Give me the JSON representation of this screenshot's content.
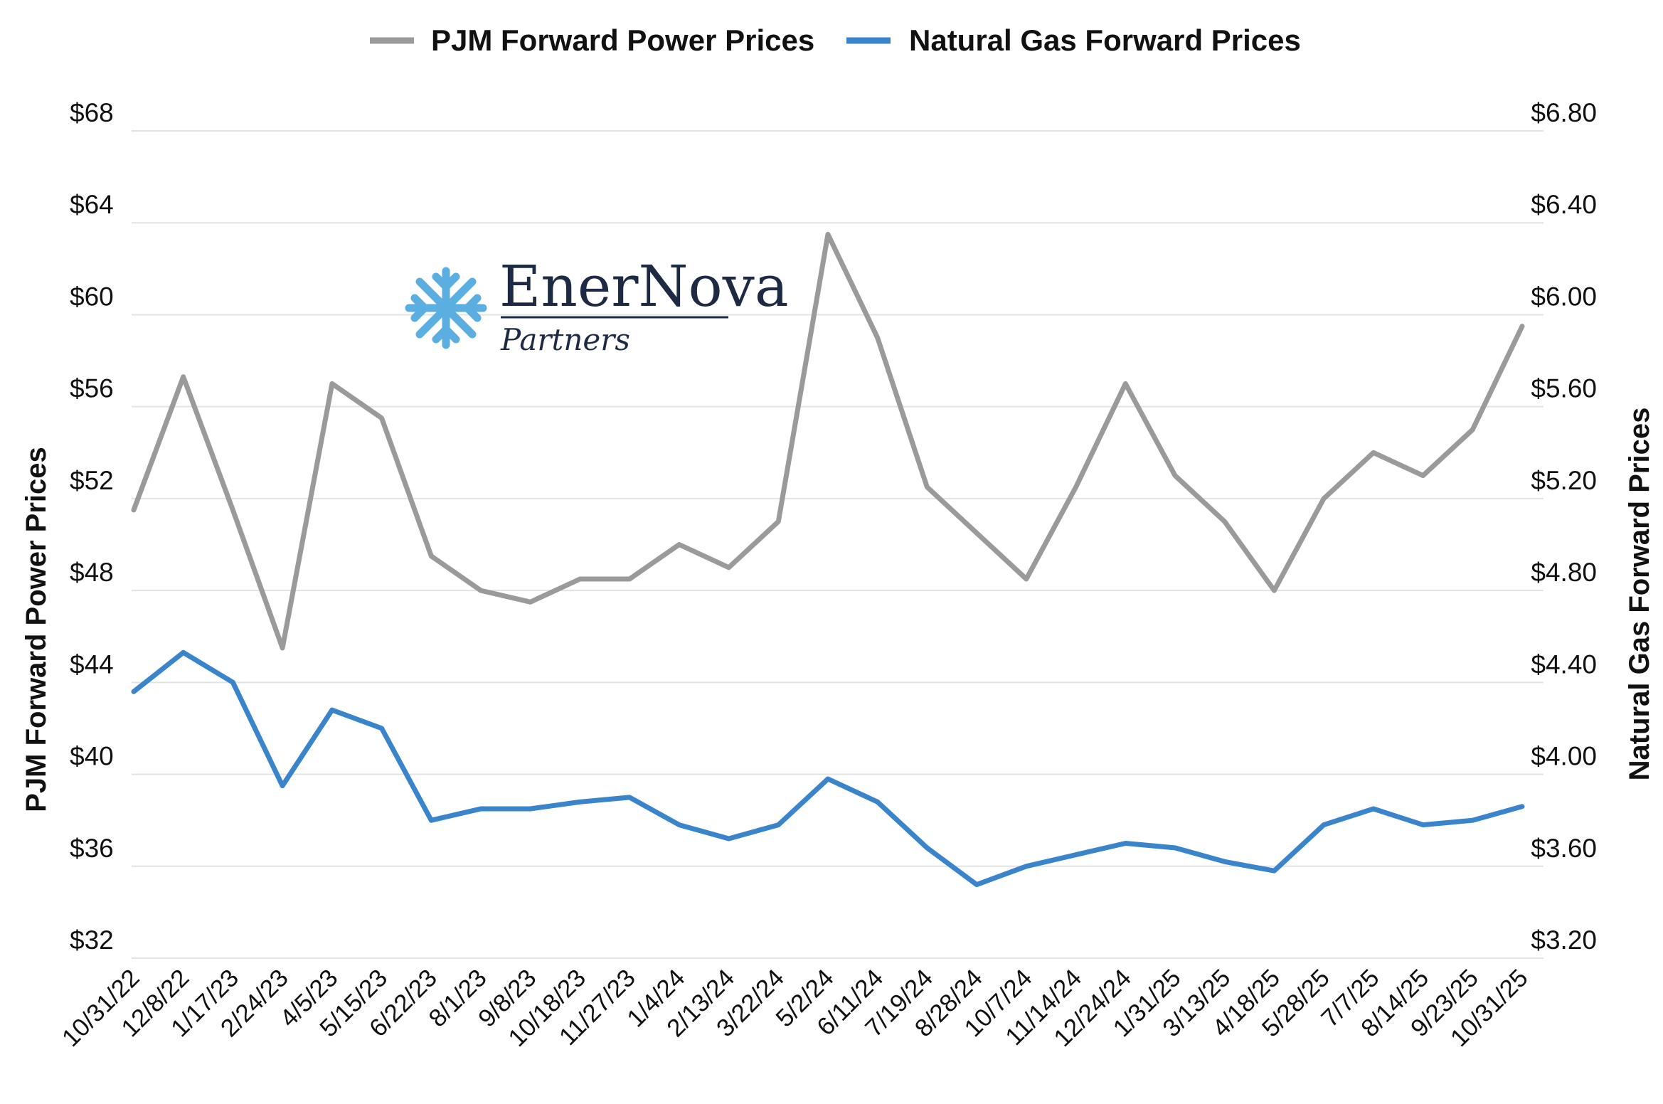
{
  "chart_data": {
    "type": "line",
    "title": "",
    "legend": [
      {
        "name": "PJM Forward Power Prices",
        "color": "#9a9a9a"
      },
      {
        "name": "Natural Gas Forward Prices",
        "color": "#3a84cc"
      }
    ],
    "legend_position": "top",
    "ylabel_left": "PJM Forward Power Prices",
    "ylabel_right": "Natural Gas Forward Prices",
    "ylim_left": [
      32,
      68
    ],
    "ylim_right": [
      3.2,
      6.8
    ],
    "yticks_left": [
      "$68",
      "$64",
      "$60",
      "$56",
      "$52",
      "$48",
      "$44",
      "$40",
      "$36",
      "$32"
    ],
    "yticks_right": [
      "$6.80",
      "$6.40",
      "$6.00",
      "$5.60",
      "$5.20",
      "$4.80",
      "$4.40",
      "$4.00",
      "$3.60",
      "$3.20"
    ],
    "grid": true,
    "x": [
      "10/31/22",
      "12/8/22",
      "1/17/23",
      "2/24/23",
      "4/5/23",
      "5/15/23",
      "6/22/23",
      "8/1/23",
      "9/8/23",
      "10/18/23",
      "11/27/23",
      "1/4/24",
      "2/13/24",
      "3/22/24",
      "5/2/24",
      "6/11/24",
      "7/19/24",
      "8/28/24",
      "10/7/24",
      "11/14/24",
      "12/24/24",
      "1/31/25",
      "3/13/25",
      "4/18/25",
      "5/28/25",
      "7/7/25",
      "8/14/25",
      "9/23/25",
      "10/31/25"
    ],
    "series": [
      {
        "name": "PJM Forward Power Prices",
        "axis": "left",
        "color": "#9a9a9a",
        "values": [
          51.5,
          57.3,
          51.5,
          45.5,
          57.0,
          55.5,
          49.5,
          48.0,
          47.5,
          48.5,
          48.5,
          50.0,
          49.0,
          51.0,
          63.5,
          59.0,
          52.5,
          50.5,
          48.5,
          52.5,
          57.0,
          53.0,
          51.0,
          48.0,
          52.0,
          54.0,
          53.0,
          55.0,
          59.5
        ]
      },
      {
        "name": "Natural Gas Forward Prices",
        "axis": "right",
        "color": "#3a84cc",
        "values": [
          4.36,
          4.53,
          4.4,
          3.95,
          4.28,
          4.2,
          3.8,
          3.85,
          3.85,
          3.88,
          3.9,
          3.78,
          3.72,
          3.78,
          3.98,
          3.88,
          3.68,
          3.52,
          3.6,
          3.65,
          3.7,
          3.68,
          3.62,
          3.58,
          3.78,
          3.85,
          3.78,
          3.8,
          3.86
        ]
      }
    ]
  },
  "logo": {
    "name": "EnerNova",
    "sub": "Partners"
  }
}
